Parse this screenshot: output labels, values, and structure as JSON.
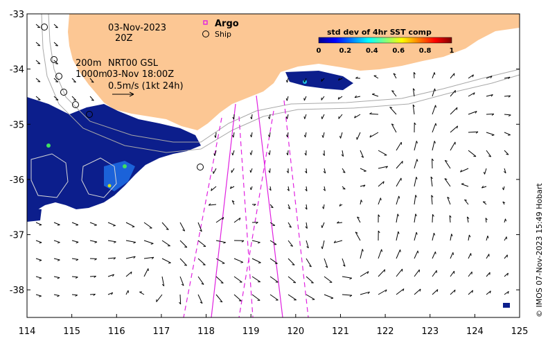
{
  "map": {
    "date": "03-Nov-2023",
    "hour": "20Z",
    "legend_argo": "Argo",
    "legend_ship": "Ship",
    "depth_line1_left": "200m",
    "depth_line1_right": "NRT00 GSL",
    "depth_line2_left": "1000m",
    "depth_line2_right": "03-Nov 18:00Z",
    "scale_label": "0.5m/s (1kt 24h)",
    "colorbar_title": "std dev of 4hr SST comp",
    "colorbar_ticks": [
      "0",
      "0.2",
      "0.4",
      "0.6",
      "0.8",
      "1"
    ],
    "credit": "© IMOS 07-Nov-2023 15:49 Hobart",
    "x_ticks": [
      "114",
      "115",
      "116",
      "117",
      "118",
      "119",
      "120",
      "121",
      "122",
      "123",
      "124",
      "125"
    ],
    "y_ticks": [
      "-33",
      "-34",
      "-35",
      "-36",
      "-37",
      "-38"
    ],
    "x_range": [
      114,
      125
    ],
    "y_range": [
      -38.5,
      -33
    ],
    "colors": {
      "land": "#fcc794",
      "sst_low": "#0c1e8c",
      "track": "#e020e0",
      "isobath": "#a8a8a8"
    }
  }
}
